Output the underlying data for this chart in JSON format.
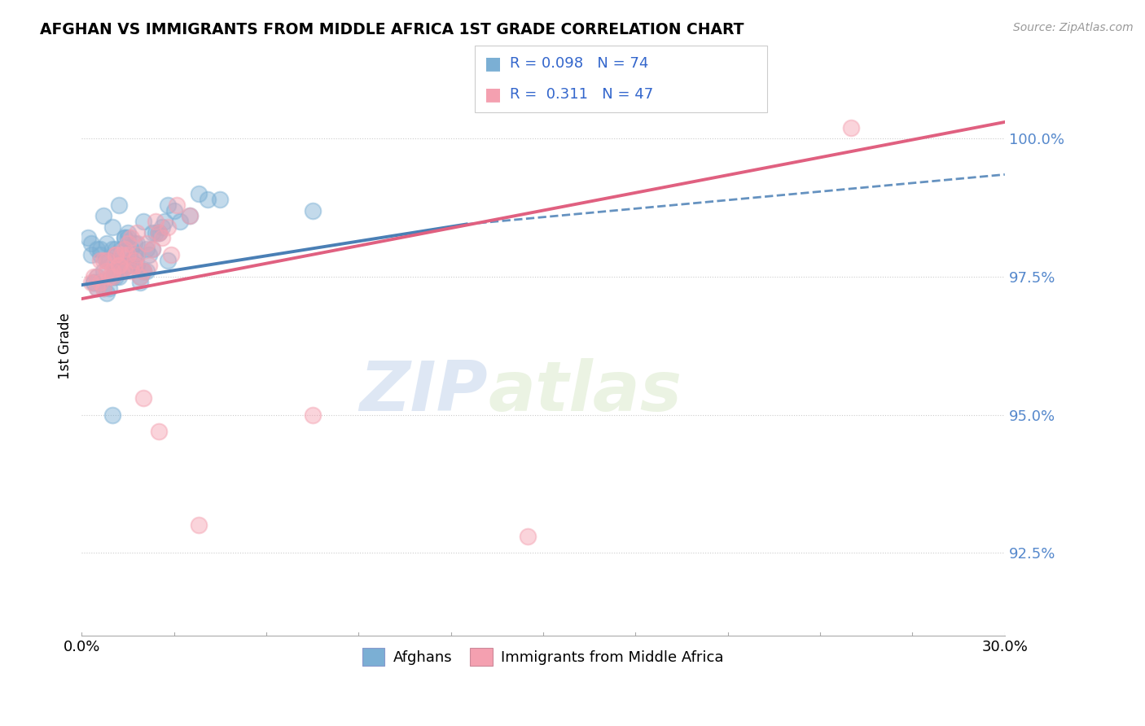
{
  "title": "AFGHAN VS IMMIGRANTS FROM MIDDLE AFRICA 1ST GRADE CORRELATION CHART",
  "source": "Source: ZipAtlas.com",
  "ylabel": "1st Grade",
  "xlim": [
    0.0,
    30.0
  ],
  "ylim": [
    91.0,
    101.5
  ],
  "yticks": [
    92.5,
    95.0,
    97.5,
    100.0
  ],
  "ytick_labels": [
    "92.5%",
    "95.0%",
    "97.5%",
    "100.0%"
  ],
  "blue_R": 0.098,
  "blue_N": 74,
  "pink_R": 0.311,
  "pink_N": 47,
  "blue_color": "#7bafd4",
  "pink_color": "#f4a0b0",
  "blue_line_color": "#4a7fb5",
  "pink_line_color": "#e06080",
  "legend_blue_label": "Afghans",
  "legend_pink_label": "Immigrants from Middle Africa",
  "watermark_zip": "ZIP",
  "watermark_atlas": "atlas",
  "blue_line_x0": 0.0,
  "blue_line_y0": 97.35,
  "blue_line_x1_solid": 12.5,
  "blue_line_y1_solid": 98.45,
  "blue_line_x1_dashed": 30.0,
  "blue_line_y1_dashed": 99.35,
  "pink_line_x0": 0.0,
  "pink_line_y0": 97.1,
  "pink_line_x1": 30.0,
  "pink_line_y1": 100.3,
  "blue_scatter_x": [
    0.2,
    0.3,
    0.3,
    0.4,
    0.5,
    0.5,
    0.6,
    0.6,
    0.7,
    0.7,
    0.8,
    0.8,
    0.8,
    0.9,
    0.9,
    1.0,
    1.0,
    1.0,
    1.1,
    1.1,
    1.2,
    1.2,
    1.2,
    1.3,
    1.3,
    1.4,
    1.4,
    1.5,
    1.5,
    1.5,
    1.6,
    1.6,
    1.7,
    1.7,
    1.8,
    1.8,
    1.9,
    1.9,
    2.0,
    2.0,
    2.1,
    2.1,
    2.2,
    2.3,
    2.4,
    2.5,
    2.6,
    2.7,
    2.8,
    3.0,
    3.2,
    3.5,
    0.5,
    0.6,
    0.7,
    0.8,
    1.0,
    1.1,
    1.2,
    1.4,
    1.5,
    1.8,
    2.0,
    2.3,
    2.8,
    4.5,
    1.5,
    3.8,
    1.0,
    4.1,
    0.4,
    1.3,
    2.5,
    7.5
  ],
  "blue_scatter_y": [
    98.2,
    98.1,
    97.9,
    97.4,
    98.0,
    97.5,
    98.0,
    97.9,
    98.6,
    97.3,
    97.2,
    98.1,
    97.8,
    97.3,
    97.8,
    98.4,
    97.5,
    98.0,
    97.5,
    98.0,
    98.8,
    97.5,
    97.7,
    97.6,
    98.0,
    97.7,
    98.2,
    98.3,
    97.7,
    98.2,
    97.8,
    98.0,
    97.9,
    98.1,
    97.9,
    97.7,
    97.5,
    97.4,
    97.6,
    98.5,
    97.6,
    98.0,
    97.9,
    98.0,
    98.3,
    98.3,
    98.4,
    98.5,
    97.8,
    98.7,
    98.5,
    98.6,
    97.3,
    97.4,
    97.6,
    97.8,
    97.5,
    97.9,
    97.7,
    98.2,
    97.7,
    98.1,
    97.6,
    98.3,
    98.8,
    98.9,
    97.7,
    99.0,
    95.0,
    98.9,
    97.4,
    97.6,
    98.3,
    98.7
  ],
  "pink_scatter_x": [
    0.3,
    0.4,
    0.5,
    0.6,
    0.7,
    0.7,
    0.8,
    0.9,
    1.0,
    1.1,
    1.1,
    1.2,
    1.3,
    1.4,
    1.5,
    1.5,
    1.6,
    1.7,
    1.8,
    1.8,
    1.9,
    2.0,
    2.1,
    2.2,
    2.3,
    2.4,
    2.5,
    2.6,
    2.8,
    2.9,
    3.1,
    3.5,
    3.8,
    0.5,
    0.6,
    0.8,
    1.0,
    1.2,
    1.3,
    1.4,
    1.6,
    1.7,
    2.0,
    2.5,
    7.5,
    14.5,
    25.0
  ],
  "pink_scatter_y": [
    97.4,
    97.5,
    97.3,
    97.8,
    97.8,
    97.3,
    97.6,
    97.5,
    97.6,
    97.9,
    97.9,
    97.7,
    97.6,
    98.0,
    98.1,
    97.9,
    98.2,
    97.7,
    97.9,
    98.3,
    97.5,
    97.6,
    98.1,
    97.7,
    98.0,
    98.5,
    98.3,
    98.2,
    98.4,
    97.9,
    98.8,
    98.6,
    93.0,
    97.5,
    97.4,
    97.8,
    97.5,
    97.7,
    97.9,
    97.6,
    97.6,
    97.8,
    95.3,
    94.7,
    95.0,
    92.8,
    100.2
  ]
}
